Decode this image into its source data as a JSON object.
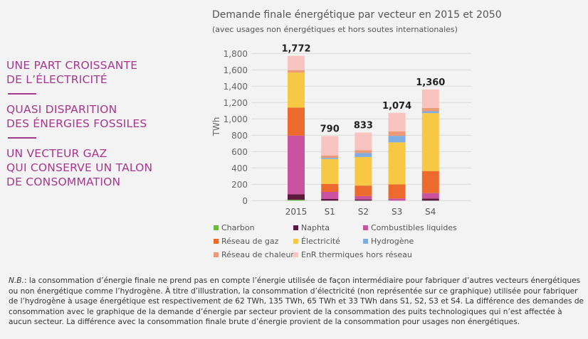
{
  "left_panel": {
    "headlines": [
      {
        "lines": [
          "UNE PART CROISSANTE",
          "DE L’ÉLECTRICITÉ"
        ]
      },
      {
        "lines": [
          "QUASI DISPARITION",
          "DES ÉNERGIES FOSSILES"
        ]
      },
      {
        "lines": [
          "UN VECTEUR GAZ",
          "QUI CONSERVE UN TALON",
          "DE CONSOMMATION"
        ]
      }
    ],
    "color": "#a6378f"
  },
  "note": {
    "prefix": "N.B.",
    "text": ": la consommation d’énergie finale ne prend pas en compte l’énergie utilisée de façon intermédiaire pour fabriquer d’autres vecteurs énergétiques ou non énergétique comme l’hydrogène. À titre d’illustration, la consommation d’électricité (non représentée sur ce graphique) utilisée pour fabriquer de l’hydrogène à usage énergétique est respectivement de 62 TWh, 135 TWh, 65 TWh et 33 TWh dans S1, S2, S3 et S4. La différence des demandes de consommation avec le graphique de la demande d’énergie par secteur provient de la consommation des puits technologiques qui n’est affectée à aucun secteur. La différence avec la consommation finale brute d’énergie provient de la consommation pour usages non énergétiques."
  },
  "chart_data": {
    "type": "bar",
    "stacked": true,
    "title": "Demande finale énergétique par vecteur en 2015 et 2050",
    "subtitle": "(avec usages non énergétiques et hors soutes internationales)",
    "xlabel": "",
    "ylabel": "TWh",
    "ylim": [
      0,
      1800
    ],
    "yticks": [
      0,
      200,
      400,
      600,
      800,
      1000,
      1200,
      1400,
      1600,
      1800
    ],
    "ytick_labels": [
      "0",
      "200",
      "400",
      "600",
      "800",
      "1,000",
      "1,200",
      "1,400",
      "1,600",
      "1,800"
    ],
    "grid": true,
    "legend_position": "bottom",
    "categories": [
      "2015",
      "S1",
      "S2",
      "S3",
      "S4"
    ],
    "totals": [
      1772,
      790,
      833,
      1074,
      1360
    ],
    "total_labels": [
      "1,772",
      "790",
      "833",
      "1,074",
      "1,360"
    ],
    "series": [
      {
        "name": "Charbon",
        "color": "#6cb843",
        "values": [
          11,
          0,
          0,
          0,
          0
        ]
      },
      {
        "name": "Naphta",
        "color": "#5c1a3d",
        "values": [
          66,
          20,
          14,
          0,
          26
        ]
      },
      {
        "name": "Combustibles liquides",
        "color": "#c9539f",
        "values": [
          720,
          87,
          42,
          27,
          66
        ]
      },
      {
        "name": "Réseau de gaz",
        "color": "#ec6a2c",
        "values": [
          341,
          98,
          128,
          172,
          270
        ]
      },
      {
        "name": "Électricité",
        "color": "#f7c843",
        "values": [
          429,
          304,
          350,
          514,
          709
        ]
      },
      {
        "name": "Hydrogène",
        "color": "#7eaee0",
        "values": [
          0,
          15,
          48,
          80,
          23
        ]
      },
      {
        "name": "Réseau de chaleur",
        "color": "#ec9a75",
        "values": [
          29,
          29,
          36,
          53,
          40
        ]
      },
      {
        "name": "EnR thermiques hors réseau",
        "color": "#f8c4bf",
        "values": [
          176,
          237,
          215,
          228,
          226
        ]
      }
    ]
  }
}
